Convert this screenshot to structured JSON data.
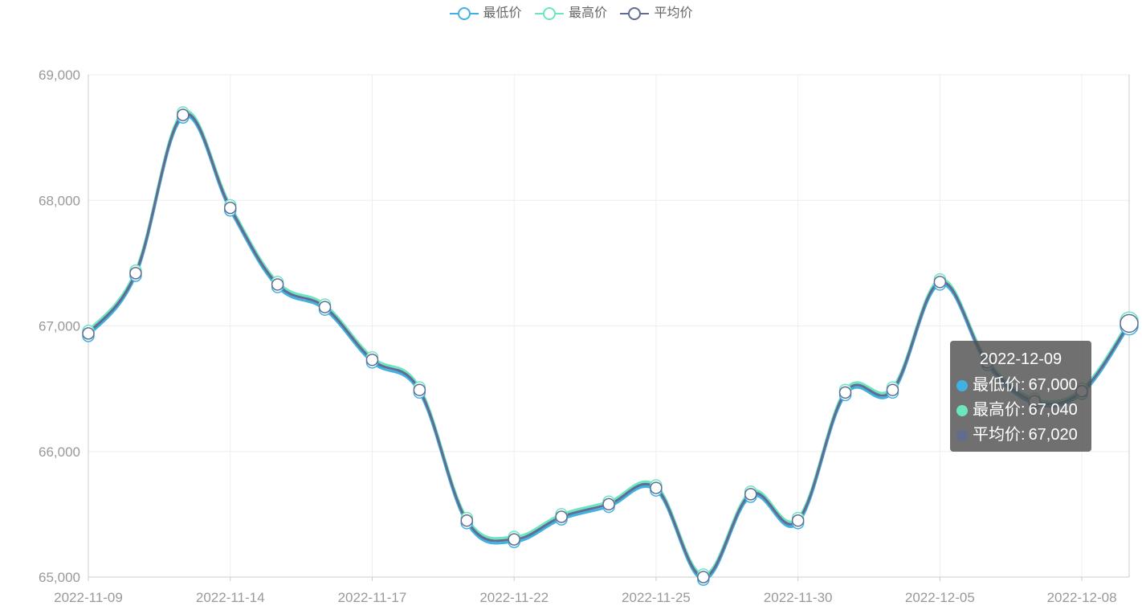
{
  "colors": {
    "series": [
      "#3fb1e3",
      "#6be6c1",
      "#626c91"
    ],
    "grid": "#eeeeee",
    "axis": "#cccccc",
    "axis_text": "#999999",
    "legend_text": "#666666"
  },
  "legend": {
    "position": "top-center",
    "items": [
      "最低价",
      "最高价",
      "平均价"
    ]
  },
  "tooltip": {
    "title": "2022-12-09",
    "rows": [
      {
        "name": "最低价",
        "value": "67,000"
      },
      {
        "name": "最高价",
        "value": "67,040"
      },
      {
        "name": "平均价",
        "value": "67,020"
      }
    ]
  },
  "chart_data": {
    "type": "line",
    "smooth": true,
    "grid": true,
    "title": "",
    "xlabel": "",
    "ylabel": "",
    "ylim": [
      65000,
      69000
    ],
    "y_ticks": [
      65000,
      66000,
      67000,
      68000,
      69000
    ],
    "y_tick_labels": [
      "65,000",
      "66,000",
      "67,000",
      "68,000",
      "69,000"
    ],
    "x_tick_labels": [
      "2022-11-09",
      "2022-11-14",
      "2022-11-17",
      "2022-11-22",
      "2022-11-25",
      "2022-11-30",
      "2022-12-05",
      "2022-12-08"
    ],
    "x_tick_indices": [
      0,
      3,
      6,
      9,
      12,
      15,
      18,
      21
    ],
    "x": [
      "2022-11-09",
      "2022-11-10",
      "2022-11-11",
      "2022-11-14",
      "2022-11-15",
      "2022-11-16",
      "2022-11-17",
      "2022-11-18",
      "2022-11-21",
      "2022-11-22",
      "2022-11-23",
      "2022-11-24",
      "2022-11-25",
      "2022-11-28",
      "2022-11-29",
      "2022-11-30",
      "2022-12-01",
      "2022-12-02",
      "2022-12-05",
      "2022-12-06",
      "2022-12-07",
      "2022-12-08",
      "2022-12-09"
    ],
    "series": [
      {
        "name": "最低价",
        "values": [
          66920,
          67400,
          68660,
          67920,
          67310,
          67130,
          66710,
          66470,
          65430,
          65280,
          65460,
          65560,
          65690,
          64980,
          65640,
          65430,
          66450,
          66470,
          67330,
          66690,
          66380,
          66460,
          67000
        ]
      },
      {
        "name": "最高价",
        "values": [
          66960,
          67440,
          68700,
          67960,
          67350,
          67170,
          66750,
          66510,
          65470,
          65320,
          65500,
          65600,
          65730,
          65020,
          65680,
          65470,
          66490,
          66510,
          67370,
          66730,
          66420,
          66500,
          67040
        ]
      },
      {
        "name": "平均价",
        "values": [
          66940,
          67420,
          68680,
          67940,
          67330,
          67150,
          66730,
          66490,
          65450,
          65300,
          65480,
          65580,
          65710,
          65000,
          65660,
          65450,
          66470,
          66490,
          67350,
          66710,
          66400,
          66480,
          67020
        ]
      }
    ]
  }
}
